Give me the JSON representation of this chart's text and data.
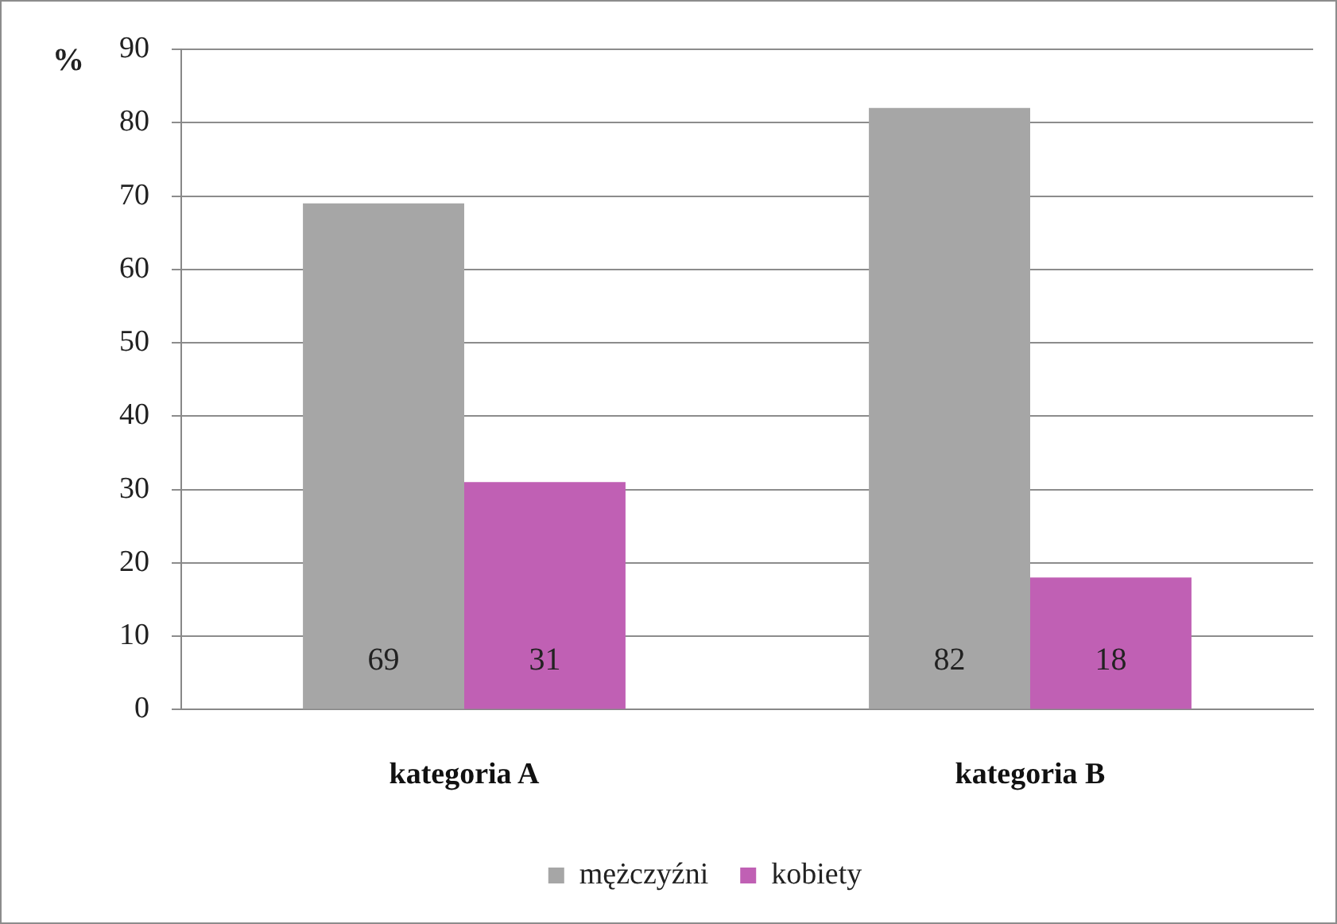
{
  "chart_data": {
    "type": "bar",
    "ylabel": "%",
    "categories": [
      "kategoria A",
      "kategoria B"
    ],
    "series": [
      {
        "name": "mężczyźni",
        "color": "#a6a6a6",
        "values": [
          69,
          82
        ]
      },
      {
        "name": "kobiety",
        "color": "#c060b4",
        "values": [
          31,
          18
        ]
      }
    ],
    "ylim": [
      0,
      90
    ],
    "yticks": [
      0,
      10,
      20,
      30,
      40,
      50,
      60,
      70,
      80,
      90
    ],
    "grid": "y",
    "legend": "bottom",
    "data_labels": true
  }
}
